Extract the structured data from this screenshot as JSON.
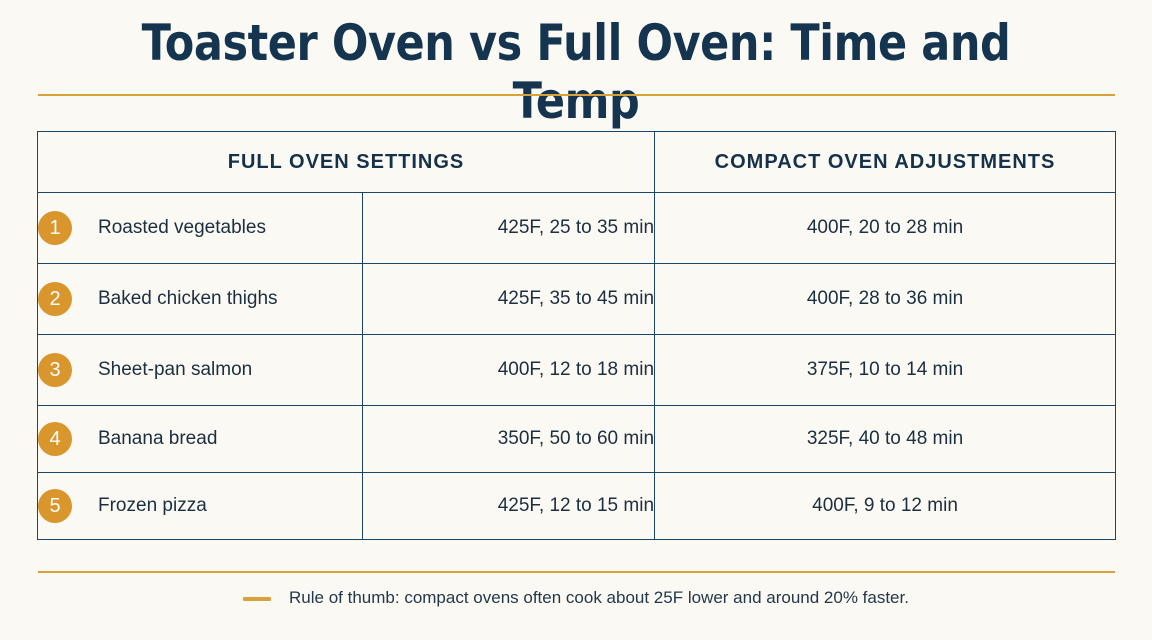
{
  "title": "Toaster Oven vs Full Oven: Time and Temp",
  "headers": {
    "full": "FULL OVEN SETTINGS",
    "compact": "COMPACT OVEN ADJUSTMENTS"
  },
  "rows": [
    {
      "num": "1",
      "food": "Roasted vegetables",
      "full": "425F, 25 to 35 min",
      "compact": "400F, 20 to 28 min"
    },
    {
      "num": "2",
      "food": "Baked chicken thighs",
      "full": "425F, 35 to 45 min",
      "compact": "400F, 28 to 36 min"
    },
    {
      "num": "3",
      "food": "Sheet-pan salmon",
      "full": "400F, 12 to 18 min",
      "compact": "375F, 10 to 14 min"
    },
    {
      "num": "4",
      "food": "Banana bread",
      "full": "350F, 50 to 60 min",
      "compact": "325F, 40 to 48 min"
    },
    {
      "num": "5",
      "food": "Frozen pizza",
      "full": "425F, 12 to 15 min",
      "compact": "400F, 9 to 12 min"
    }
  ],
  "footnote": "Rule of thumb: compact ovens often cook about 25F lower and around 20% faster.",
  "colors": {
    "accent": "#d8962c",
    "ink": "#16324a",
    "background": "#fbf9f3"
  }
}
